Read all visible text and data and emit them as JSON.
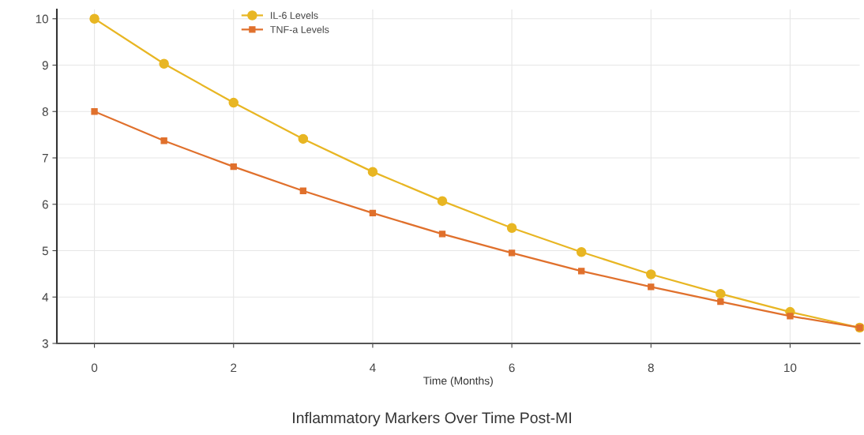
{
  "chart_data": {
    "type": "line",
    "title": "Inflammatory Markers Over Time Post-MI",
    "xlabel": "Time (Months)",
    "x": [
      0,
      1,
      2,
      3,
      4,
      5,
      6,
      7,
      8,
      9,
      10,
      11
    ],
    "series": [
      {
        "name": "IL-6 Levels",
        "color": "#e8b623",
        "marker": "circle",
        "values": [
          10.0,
          9.03,
          8.19,
          7.41,
          6.7,
          6.07,
          5.49,
          4.97,
          4.49,
          4.07,
          3.68,
          3.34
        ]
      },
      {
        "name": "TNF-a Levels",
        "color": "#e0702c",
        "marker": "square",
        "values": [
          8.0,
          7.37,
          6.81,
          6.29,
          5.81,
          5.36,
          4.95,
          4.56,
          4.22,
          3.9,
          3.59,
          3.34
        ]
      }
    ],
    "xlim": [
      -0.54,
      11
    ],
    "xticks": [
      0,
      2,
      4,
      6,
      8,
      10
    ],
    "ylim": [
      3,
      10.2
    ],
    "yticks": [
      3,
      4,
      5,
      6,
      7,
      8,
      9,
      10
    ],
    "grid": true,
    "legend": "top left",
    "line_style": "solid"
  }
}
